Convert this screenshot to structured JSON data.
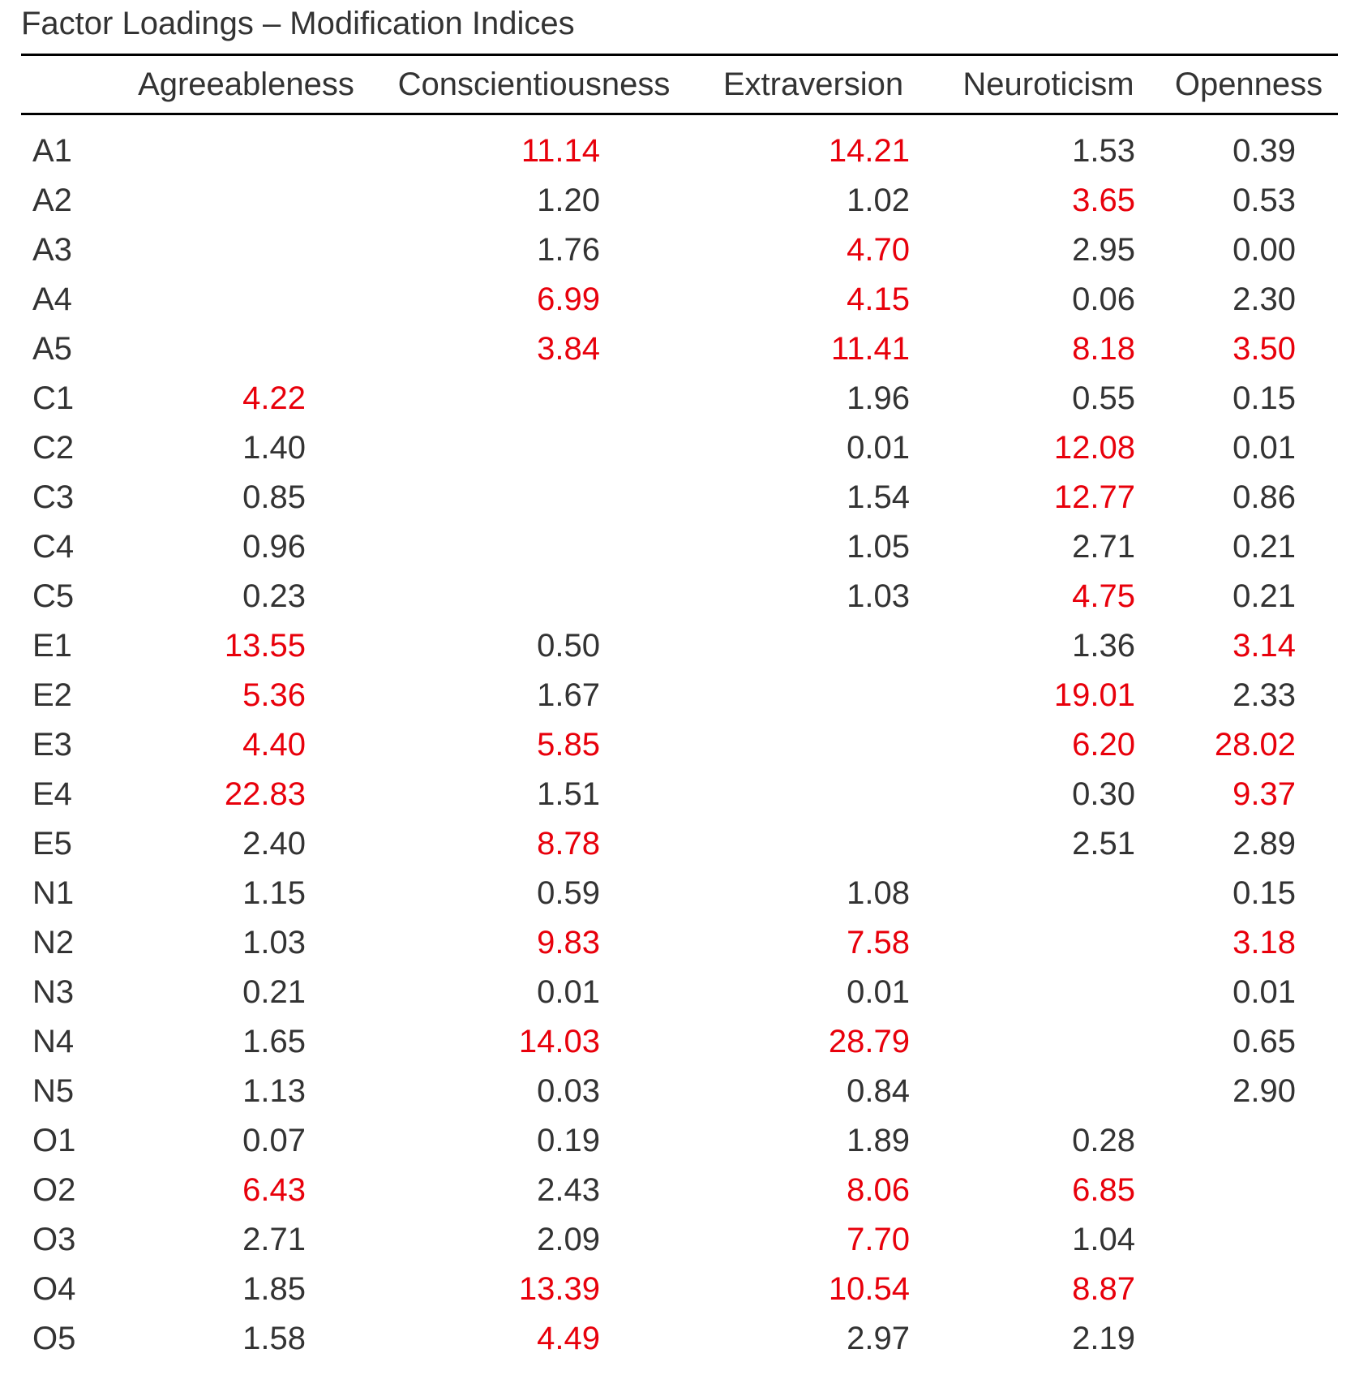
{
  "caption": "Factor Loadings – Modification Indices",
  "highlight_color": "#e8000b",
  "text_color": "#333333",
  "columns": [
    "",
    "Agreeableness",
    "Conscientiousness",
    "Extraversion",
    "Neuroticism",
    "Openness"
  ],
  "rows": [
    {
      "label": "A1",
      "values": [
        "",
        "11.14",
        "14.21",
        "1.53",
        "0.39"
      ],
      "highlight": [
        false,
        true,
        true,
        false,
        false
      ]
    },
    {
      "label": "A2",
      "values": [
        "",
        "1.20",
        "1.02",
        "3.65",
        "0.53"
      ],
      "highlight": [
        false,
        false,
        false,
        true,
        false
      ]
    },
    {
      "label": "A3",
      "values": [
        "",
        "1.76",
        "4.70",
        "2.95",
        "0.00"
      ],
      "highlight": [
        false,
        false,
        true,
        false,
        false
      ]
    },
    {
      "label": "A4",
      "values": [
        "",
        "6.99",
        "4.15",
        "0.06",
        "2.30"
      ],
      "highlight": [
        false,
        true,
        true,
        false,
        false
      ]
    },
    {
      "label": "A5",
      "values": [
        "",
        "3.84",
        "11.41",
        "8.18",
        "3.50"
      ],
      "highlight": [
        false,
        true,
        true,
        true,
        true
      ]
    },
    {
      "label": "C1",
      "values": [
        "4.22",
        "",
        "1.96",
        "0.55",
        "0.15"
      ],
      "highlight": [
        true,
        false,
        false,
        false,
        false
      ]
    },
    {
      "label": "C2",
      "values": [
        "1.40",
        "",
        "0.01",
        "12.08",
        "0.01"
      ],
      "highlight": [
        false,
        false,
        false,
        true,
        false
      ]
    },
    {
      "label": "C3",
      "values": [
        "0.85",
        "",
        "1.54",
        "12.77",
        "0.86"
      ],
      "highlight": [
        false,
        false,
        false,
        true,
        false
      ]
    },
    {
      "label": "C4",
      "values": [
        "0.96",
        "",
        "1.05",
        "2.71",
        "0.21"
      ],
      "highlight": [
        false,
        false,
        false,
        false,
        false
      ]
    },
    {
      "label": "C5",
      "values": [
        "0.23",
        "",
        "1.03",
        "4.75",
        "0.21"
      ],
      "highlight": [
        false,
        false,
        false,
        true,
        false
      ]
    },
    {
      "label": "E1",
      "values": [
        "13.55",
        "0.50",
        "",
        "1.36",
        "3.14"
      ],
      "highlight": [
        true,
        false,
        false,
        false,
        true
      ]
    },
    {
      "label": "E2",
      "values": [
        "5.36",
        "1.67",
        "",
        "19.01",
        "2.33"
      ],
      "highlight": [
        true,
        false,
        false,
        true,
        false
      ]
    },
    {
      "label": "E3",
      "values": [
        "4.40",
        "5.85",
        "",
        "6.20",
        "28.02"
      ],
      "highlight": [
        true,
        true,
        false,
        true,
        true
      ]
    },
    {
      "label": "E4",
      "values": [
        "22.83",
        "1.51",
        "",
        "0.30",
        "9.37"
      ],
      "highlight": [
        true,
        false,
        false,
        false,
        true
      ]
    },
    {
      "label": "E5",
      "values": [
        "2.40",
        "8.78",
        "",
        "2.51",
        "2.89"
      ],
      "highlight": [
        false,
        true,
        false,
        false,
        false
      ]
    },
    {
      "label": "N1",
      "values": [
        "1.15",
        "0.59",
        "1.08",
        "",
        "0.15"
      ],
      "highlight": [
        false,
        false,
        false,
        false,
        false
      ]
    },
    {
      "label": "N2",
      "values": [
        "1.03",
        "9.83",
        "7.58",
        "",
        "3.18"
      ],
      "highlight": [
        false,
        true,
        true,
        false,
        true
      ]
    },
    {
      "label": "N3",
      "values": [
        "0.21",
        "0.01",
        "0.01",
        "",
        "0.01"
      ],
      "highlight": [
        false,
        false,
        false,
        false,
        false
      ]
    },
    {
      "label": "N4",
      "values": [
        "1.65",
        "14.03",
        "28.79",
        "",
        "0.65"
      ],
      "highlight": [
        false,
        true,
        true,
        false,
        false
      ]
    },
    {
      "label": "N5",
      "values": [
        "1.13",
        "0.03",
        "0.84",
        "",
        "2.90"
      ],
      "highlight": [
        false,
        false,
        false,
        false,
        false
      ]
    },
    {
      "label": "O1",
      "values": [
        "0.07",
        "0.19",
        "1.89",
        "0.28",
        ""
      ],
      "highlight": [
        false,
        false,
        false,
        false,
        false
      ]
    },
    {
      "label": "O2",
      "values": [
        "6.43",
        "2.43",
        "8.06",
        "6.85",
        ""
      ],
      "highlight": [
        true,
        false,
        true,
        true,
        false
      ]
    },
    {
      "label": "O3",
      "values": [
        "2.71",
        "2.09",
        "7.70",
        "1.04",
        ""
      ],
      "highlight": [
        false,
        false,
        true,
        false,
        false
      ]
    },
    {
      "label": "O4",
      "values": [
        "1.85",
        "13.39",
        "10.54",
        "8.87",
        ""
      ],
      "highlight": [
        false,
        true,
        true,
        true,
        false
      ]
    },
    {
      "label": "O5",
      "values": [
        "1.58",
        "4.49",
        "2.97",
        "2.19",
        ""
      ],
      "highlight": [
        false,
        true,
        false,
        false,
        false
      ]
    }
  ]
}
